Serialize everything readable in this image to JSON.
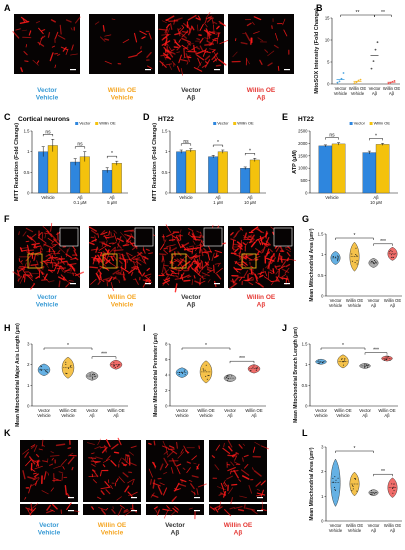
{
  "colors": {
    "vector_vehicle": "#3a9bd5",
    "willin_vehicle": "#f5a623",
    "vector_abeta": "#333333",
    "willin_abeta": "#e53935",
    "blue": "#2e86de",
    "yellow": "#f4c20d",
    "violin_blue": "#4aa3df",
    "violin_yellow": "#f3b72b",
    "violin_gray": "#9e9e9e",
    "violin_red": "#ef5350",
    "micrograph_bg": "#060303",
    "mito_red": "#ff1a1a"
  },
  "panels": {
    "A": {
      "letter": "A",
      "labels": [
        [
          "Vector",
          "Vehicle"
        ],
        [
          "Willin OE",
          "Vehicle"
        ],
        [
          "Vector",
          "Aβ"
        ],
        [
          "Willin OE",
          "Aβ"
        ]
      ]
    },
    "B": {
      "letter": "B"
    },
    "C": {
      "letter": "C",
      "title": "Cortical neurons"
    },
    "D": {
      "letter": "D",
      "title": "HT22"
    },
    "E": {
      "letter": "E",
      "title": "HT22"
    },
    "F": {
      "letter": "F",
      "labels": [
        [
          "Vector",
          "Vehicle"
        ],
        [
          "Willin OE",
          "Vehicle"
        ],
        [
          "Vector",
          "Aβ"
        ],
        [
          "Willin OE",
          "Aβ"
        ]
      ]
    },
    "G": {
      "letter": "G"
    },
    "H": {
      "letter": "H"
    },
    "I": {
      "letter": "I"
    },
    "J": {
      "letter": "J"
    },
    "K": {
      "letter": "K",
      "labels": [
        [
          "Vector",
          "Vehicle"
        ],
        [
          "Willin OE",
          "Vehicle"
        ],
        [
          "Vector",
          "Aβ"
        ],
        [
          "Willin OE",
          "Aβ"
        ]
      ]
    },
    "L": {
      "letter": "L"
    }
  },
  "chart_data": [
    {
      "panel": "B",
      "type": "scatter",
      "ylabel": "MitoSOX Intensity (Fold Change)",
      "categories": [
        [
          "Vector",
          "Vehicle"
        ],
        [
          "Willin OE",
          "Vehicle"
        ],
        [
          "Vector",
          "Aβ"
        ],
        [
          "Willin OE",
          "Aβ"
        ]
      ],
      "ylim": [
        0,
        15
      ],
      "yticks": [
        0,
        5,
        10,
        15
      ],
      "means": [
        1.0,
        0.6,
        6.5,
        0.4
      ],
      "points": [
        [
          0.3,
          0.6,
          1.2,
          2.5
        ],
        [
          0.2,
          0.4,
          0.8,
          1.0
        ],
        [
          3.5,
          5.2,
          7.8,
          9.5
        ],
        [
          0.1,
          0.3,
          0.5,
          0.7
        ]
      ],
      "significance": [
        {
          "from": 0,
          "to": 2,
          "label": "**"
        },
        {
          "from": 2,
          "to": 3,
          "label": "**"
        }
      ]
    },
    {
      "panel": "C",
      "type": "bar",
      "ylabel": "MTT Reduction (Fold Change)",
      "legend": [
        "Vector",
        "Willin OE"
      ],
      "groups": [
        [
          "Vehicle"
        ],
        [
          "Aβ",
          "0.1 μM"
        ],
        [
          "Aβ",
          "5 μM"
        ]
      ],
      "series": [
        {
          "name": "Vector",
          "values": [
            1.0,
            0.75,
            0.55
          ]
        },
        {
          "name": "Willin OE",
          "values": [
            1.15,
            0.88,
            0.72
          ]
        }
      ],
      "errors": [
        [
          0.12,
          0.08,
          0.06
        ],
        [
          0.15,
          0.12,
          0.05
        ]
      ],
      "ylim": [
        0,
        1.5
      ],
      "yticks": [
        0.0,
        0.5,
        1.0,
        1.5
      ],
      "significance": [
        "ns",
        "ns",
        "*"
      ]
    },
    {
      "panel": "D",
      "type": "bar",
      "ylabel": "MTT Reduction (Fold Change)",
      "legend": [
        "Vector",
        "Willin OE"
      ],
      "groups": [
        [
          "Vehicle"
        ],
        [
          "Aβ",
          "1 μM"
        ],
        [
          "Aβ",
          "10 μM"
        ]
      ],
      "series": [
        {
          "name": "Vector",
          "values": [
            1.0,
            0.88,
            0.6
          ]
        },
        {
          "name": "Willin OE",
          "values": [
            1.03,
            1.0,
            0.8
          ]
        }
      ],
      "errors": [
        [
          0.04,
          0.03,
          0.03
        ],
        [
          0.04,
          0.04,
          0.04
        ]
      ],
      "ylim": [
        0,
        1.5
      ],
      "yticks": [
        0.0,
        0.5,
        1.0,
        1.5
      ],
      "significance": [
        "ns",
        "*",
        "*"
      ]
    },
    {
      "panel": "E",
      "type": "bar",
      "ylabel": "ATP (μM)",
      "legend": [
        "Vector",
        "Willin OE"
      ],
      "groups": [
        [
          "Vehicle"
        ],
        [
          "Aβ",
          "10 μM"
        ]
      ],
      "series": [
        {
          "name": "Vector",
          "values": [
            1900,
            1630
          ]
        },
        {
          "name": "Willin OE",
          "values": [
            1980,
            1960
          ]
        }
      ],
      "errors": [
        [
          40,
          60
        ],
        [
          50,
          40
        ]
      ],
      "ylim": [
        0,
        2500
      ],
      "yticks": [
        0,
        500,
        1000,
        1500,
        2000,
        2500
      ],
      "significance": [
        "ns",
        "*"
      ]
    },
    {
      "panel": "G",
      "type": "violin",
      "ylabel": "Mean Mitochondrial Area (μm²)",
      "categories": [
        [
          "Vector",
          "Vehicle"
        ],
        [
          "Willin OE",
          "Vehicle"
        ],
        [
          "Vector",
          "Aβ"
        ],
        [
          "Willin OE",
          "Aβ"
        ]
      ],
      "ylim": [
        0,
        1.5
      ],
      "yticks": [
        0.0,
        0.5,
        1.0,
        1.5
      ],
      "medians": [
        0.92,
        0.95,
        0.8,
        1.02
      ],
      "spreads": [
        0.1,
        0.22,
        0.07,
        0.1
      ],
      "significance": [
        {
          "from": 0,
          "to": 2,
          "label": "*"
        },
        {
          "from": 2,
          "to": 3,
          "label": "***"
        }
      ]
    },
    {
      "panel": "H",
      "type": "violin",
      "ylabel": "Mean Mitochondrial Major Axis Length (μm)",
      "categories": [
        [
          "Vector",
          "Vehicle"
        ],
        [
          "Willin OE",
          "Vehicle"
        ],
        [
          "Vector",
          "Aβ"
        ],
        [
          "Willin OE",
          "Aβ"
        ]
      ],
      "ylim": [
        0,
        3
      ],
      "yticks": [
        0,
        1,
        2,
        3
      ],
      "medians": [
        1.75,
        1.85,
        1.45,
        2.0
      ],
      "spreads": [
        0.18,
        0.32,
        0.13,
        0.14
      ],
      "significance": [
        {
          "from": 0,
          "to": 2,
          "label": "*"
        },
        {
          "from": 2,
          "to": 3,
          "label": "***"
        }
      ]
    },
    {
      "panel": "I",
      "type": "violin",
      "ylabel": "Mean Mitochondrial Perimeter (μm)",
      "categories": [
        [
          "Vector",
          "Vehicle"
        ],
        [
          "Willin OE",
          "Vehicle"
        ],
        [
          "Vector",
          "Aβ"
        ],
        [
          "Willin OE",
          "Aβ"
        ]
      ],
      "ylim": [
        0,
        8
      ],
      "yticks": [
        0,
        2,
        4,
        6,
        8
      ],
      "medians": [
        4.3,
        4.4,
        3.6,
        4.8
      ],
      "spreads": [
        0.4,
        0.9,
        0.3,
        0.35
      ],
      "significance": [
        {
          "from": 0,
          "to": 2,
          "label": "*"
        },
        {
          "from": 2,
          "to": 3,
          "label": "***"
        }
      ]
    },
    {
      "panel": "J",
      "type": "violin",
      "ylabel": "Mean Mitochondrial Branch Length (μm)",
      "categories": [
        [
          "Vector",
          "Vehicle"
        ],
        [
          "Willin OE",
          "Vehicle"
        ],
        [
          "Vector",
          "Aβ"
        ],
        [
          "Willin OE",
          "Aβ"
        ]
      ],
      "ylim": [
        0,
        1.5
      ],
      "yticks": [
        0.0,
        0.5,
        1.0,
        1.5
      ],
      "medians": [
        1.07,
        1.08,
        0.97,
        1.15
      ],
      "spreads": [
        0.04,
        0.1,
        0.04,
        0.04
      ],
      "significance": [
        {
          "from": 0,
          "to": 2,
          "label": "*"
        },
        {
          "from": 2,
          "to": 3,
          "label": "***"
        }
      ]
    },
    {
      "panel": "L",
      "type": "violin",
      "ylabel": "Mean Mitochondrial Area (μm²)",
      "categories": [
        [
          "Vector",
          "Vehicle"
        ],
        [
          "Willin OE",
          "Vehicle"
        ],
        [
          "Vector",
          "Aβ"
        ],
        [
          "Willin OE",
          "Aβ"
        ]
      ],
      "ylim": [
        0,
        3
      ],
      "yticks": [
        0,
        1,
        2,
        3
      ],
      "medians": [
        1.55,
        1.5,
        1.15,
        1.35
      ],
      "spreads": [
        0.6,
        0.3,
        0.08,
        0.25
      ],
      "significance": [
        {
          "from": 0,
          "to": 2,
          "label": "*"
        },
        {
          "from": 2,
          "to": 3,
          "label": "**"
        }
      ]
    }
  ]
}
